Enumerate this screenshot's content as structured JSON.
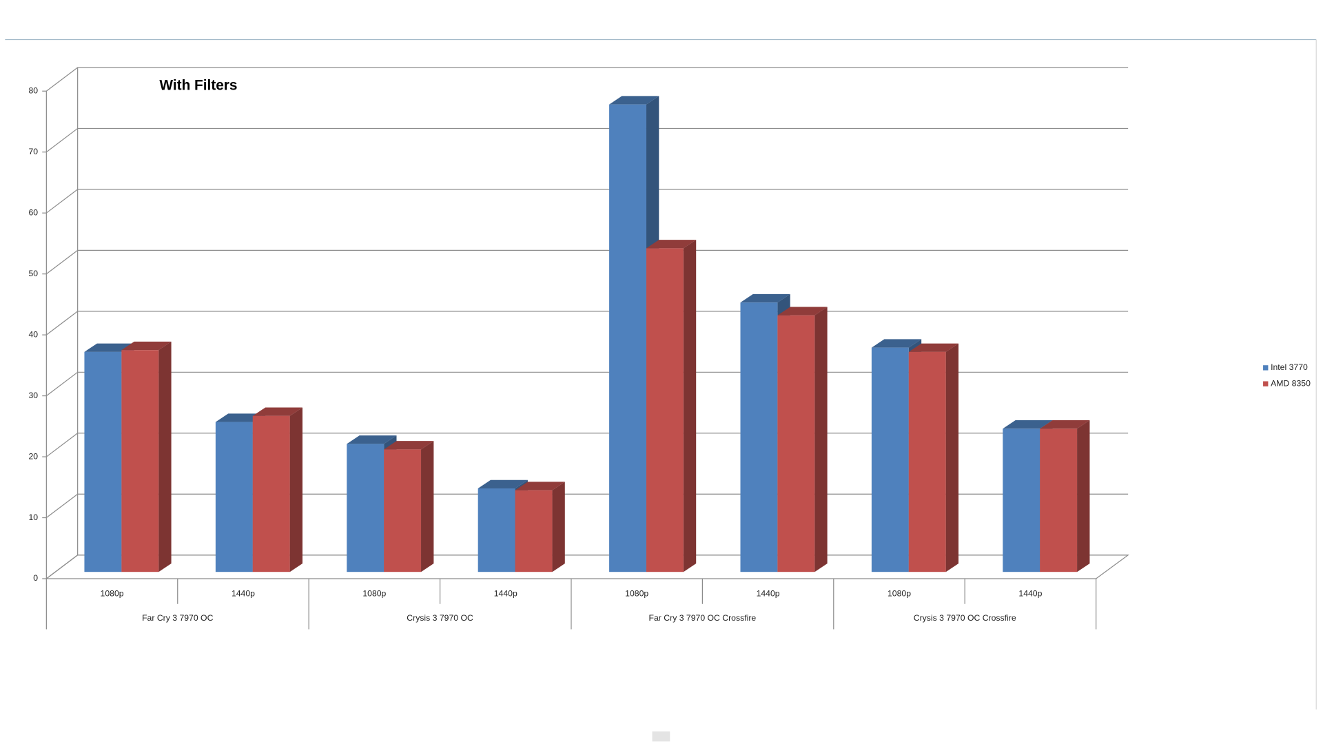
{
  "chart_data": {
    "type": "bar3d",
    "title": "With Filters",
    "categories": [
      "1080p",
      "1440p",
      "1080p",
      "1440p",
      "1080p",
      "1440p",
      "1080p",
      "1440p"
    ],
    "groups": [
      "Far Cry 3 7970 OC",
      "Crysis 3 7970 OC",
      "Far Cry 3 7970 OC Crossfire",
      "Crysis 3 7970 OC Crossfire"
    ],
    "series": [
      {
        "name": "Intel 3770",
        "color": "#4f81bd",
        "values": [
          36.1,
          24.6,
          21.0,
          13.7,
          76.7,
          44.2,
          36.8,
          23.5
        ]
      },
      {
        "name": "AMD 8350",
        "color": "#c0504d",
        "values": [
          36.4,
          25.6,
          20.1,
          13.4,
          53.1,
          42.1,
          36.1,
          23.5
        ]
      }
    ],
    "ylim": [
      0,
      80
    ],
    "yticks": [
      0,
      10,
      20,
      30,
      40,
      50,
      60,
      70,
      80
    ],
    "grid": true,
    "legend": "right"
  }
}
